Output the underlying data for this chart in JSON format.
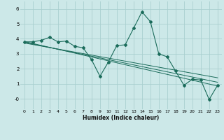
{
  "xlabel": "Humidex (Indice chaleur)",
  "background_color": "#cce8e8",
  "grid_color": "#aacfcf",
  "line_color": "#1a6b5a",
  "xlim": [
    -0.5,
    23.5
  ],
  "ylim": [
    -0.7,
    6.5
  ],
  "xticks": [
    0,
    1,
    2,
    3,
    4,
    5,
    6,
    7,
    8,
    9,
    10,
    11,
    12,
    13,
    14,
    15,
    16,
    17,
    18,
    19,
    20,
    21,
    22,
    23
  ],
  "yticks": [
    0,
    1,
    2,
    3,
    4,
    5,
    6
  ],
  "ytick_labels": [
    "-0",
    "1",
    "2",
    "3",
    "4",
    "5",
    "6"
  ],
  "series": [
    {
      "x": [
        0,
        1,
        2,
        3,
        4,
        5,
        6,
        7,
        8,
        9,
        10,
        11,
        12,
        13,
        14,
        15,
        16,
        17,
        18,
        19,
        20,
        21,
        22,
        23
      ],
      "y": [
        3.8,
        3.8,
        3.9,
        4.1,
        3.8,
        3.85,
        3.5,
        3.4,
        2.6,
        1.5,
        2.45,
        3.55,
        3.6,
        4.7,
        5.8,
        5.15,
        3.0,
        2.8,
        1.85,
        0.9,
        1.3,
        1.25,
        -0.05,
        0.9
      ]
    },
    {
      "x": [
        0,
        23
      ],
      "y": [
        3.82,
        0.85
      ]
    },
    {
      "x": [
        0,
        23
      ],
      "y": [
        3.77,
        1.1
      ]
    },
    {
      "x": [
        0,
        23
      ],
      "y": [
        3.72,
        1.4
      ]
    }
  ]
}
